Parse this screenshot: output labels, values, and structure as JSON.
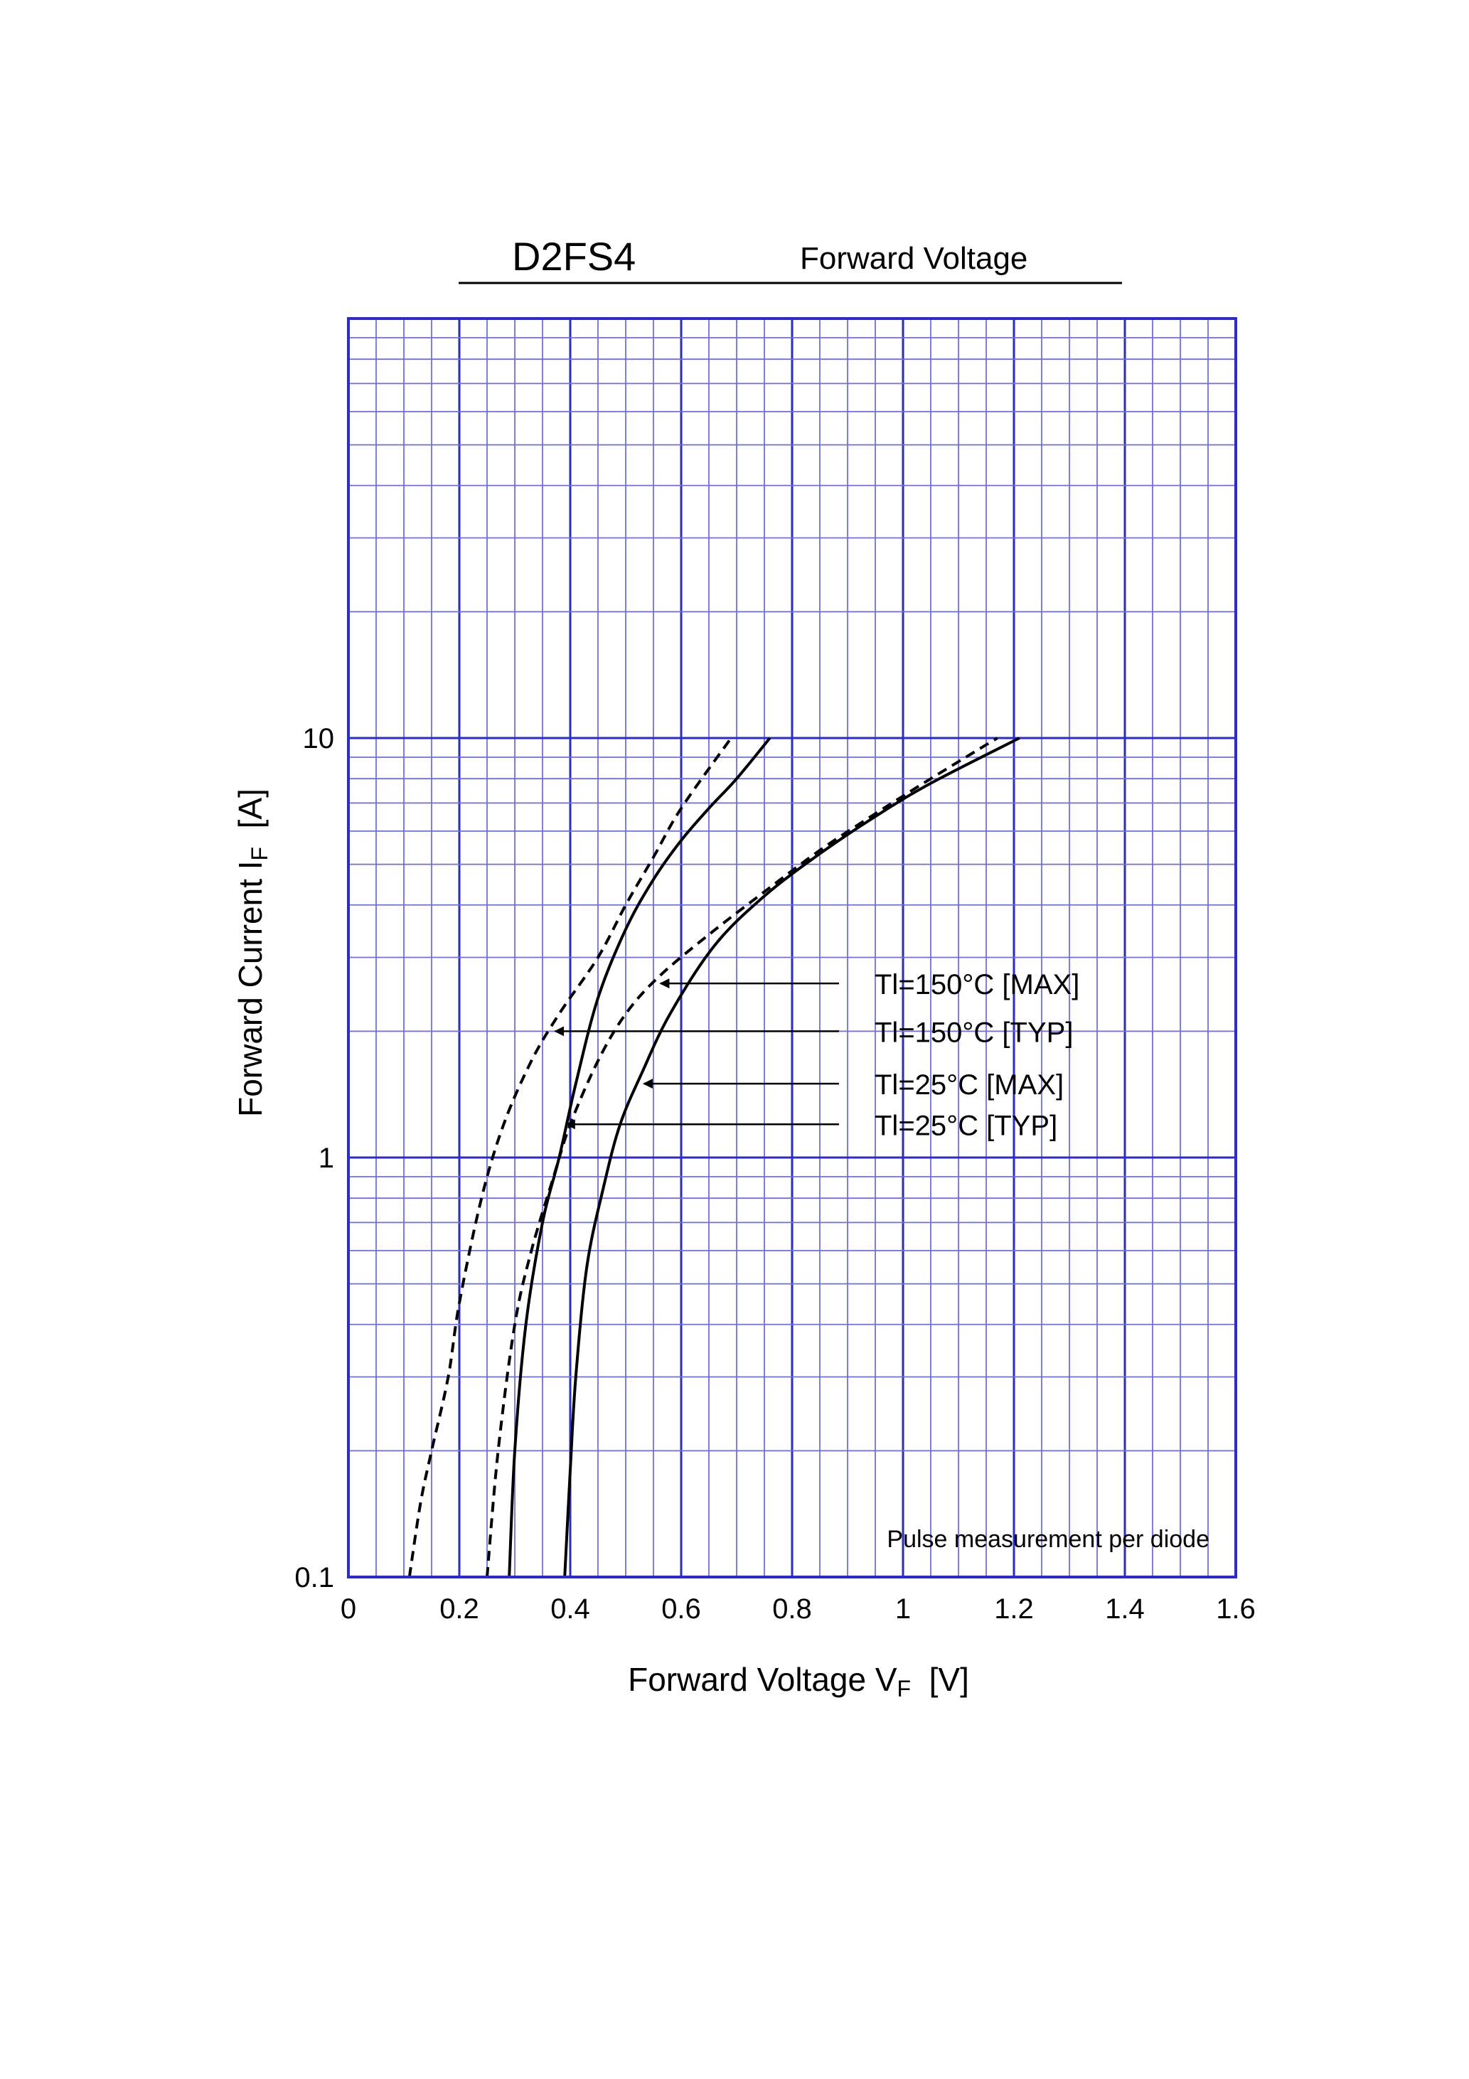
{
  "header": {
    "part_number": "D2FS4",
    "chart_name": "Forward Voltage"
  },
  "chart_data": {
    "type": "line",
    "title": "D2FS4",
    "subtitle": "Forward Voltage",
    "xlabel": {
      "main": "Forward Voltage  V",
      "sub": "F",
      "unit": "  [V]"
    },
    "ylabel": {
      "main": "Forward Current  I",
      "sub": "F",
      "unit": "  [A]"
    },
    "xlim": [
      0,
      1.6
    ],
    "ylim": [
      0.1,
      100
    ],
    "yscale": "log",
    "grid": true,
    "x_ticks": [
      "0",
      "0.2",
      "0.4",
      "0.6",
      "0.8",
      "1",
      "1.2",
      "1.4",
      "1.6"
    ],
    "y_ticks": [
      {
        "label": "0.1",
        "value": 0.1
      },
      {
        "label": "1",
        "value": 1
      },
      {
        "label": "10",
        "value": 10
      }
    ],
    "note": "Pulse measurement per diode",
    "colors": {
      "grid": "#2b2bd1",
      "grid_minor": "#6f6fe0",
      "curve": "#000000"
    },
    "series": [
      {
        "name": "Tl=150°C [MAX]",
        "style": "dashed",
        "x": [
          0.25,
          0.27,
          0.3,
          0.33,
          0.37,
          0.4,
          0.45,
          0.5,
          0.56,
          0.65,
          0.75,
          0.85,
          0.95,
          1.05,
          1.17
        ],
        "y": [
          0.1,
          0.2,
          0.4,
          0.6,
          0.9,
          1.2,
          1.7,
          2.2,
          2.7,
          3.4,
          4.3,
          5.4,
          6.6,
          8.0,
          10
        ]
      },
      {
        "name": "Tl=150°C [TYP]",
        "style": "dashed",
        "x": [
          0.11,
          0.13,
          0.15,
          0.18,
          0.2,
          0.24,
          0.28,
          0.33,
          0.38,
          0.45,
          0.5,
          0.55,
          0.6,
          0.69
        ],
        "y": [
          0.1,
          0.15,
          0.2,
          0.3,
          0.45,
          0.8,
          1.2,
          1.7,
          2.2,
          3.0,
          4.0,
          5.2,
          6.8,
          10
        ]
      },
      {
        "name": "Tl=25°C [MAX]",
        "style": "solid",
        "x": [
          0.39,
          0.4,
          0.41,
          0.43,
          0.46,
          0.49,
          0.53,
          0.58,
          0.66,
          0.75,
          0.85,
          0.95,
          1.05,
          1.21
        ],
        "y": [
          0.1,
          0.18,
          0.3,
          0.55,
          0.85,
          1.2,
          1.6,
          2.2,
          3.2,
          4.2,
          5.3,
          6.5,
          7.8,
          10
        ]
      },
      {
        "name": "Tl=25°C [TYP]",
        "style": "solid",
        "x": [
          0.29,
          0.3,
          0.32,
          0.35,
          0.38,
          0.41,
          0.45,
          0.5,
          0.55,
          0.6,
          0.65,
          0.7,
          0.76
        ],
        "y": [
          0.1,
          0.2,
          0.4,
          0.7,
          1.0,
          1.5,
          2.4,
          3.5,
          4.6,
          5.7,
          6.8,
          8.0,
          10
        ]
      }
    ],
    "annotations": [
      {
        "text": "Tl=150°C [MAX]",
        "target_series": "Tl=150°C [MAX]",
        "x": 0.56,
        "y": 2.6
      },
      {
        "text": "Tl=150°C [TYP]",
        "target_series": "Tl=150°C [TYP]",
        "x": 0.37,
        "y": 2.0
      },
      {
        "text": "Tl=25°C [MAX]",
        "target_series": "Tl=25°C [MAX]",
        "x": 0.53,
        "y": 1.5
      },
      {
        "text": "Tl=25°C [TYP]",
        "target_series": "Tl=25°C [TYP]",
        "x": 0.39,
        "y": 1.2
      }
    ]
  }
}
